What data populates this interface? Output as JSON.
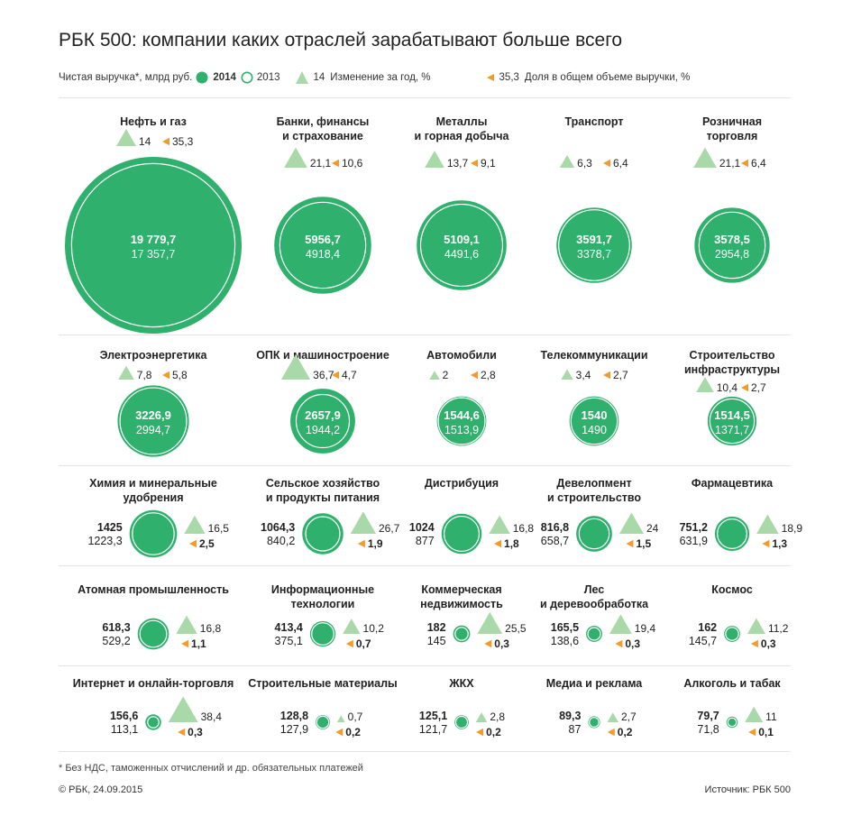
{
  "title": "РБК 500: компании каких отраслей зарабатывают больше всего",
  "legend": {
    "revenue_label": "Чистая выручка*, млрд руб.",
    "year_2014": "2014",
    "year_2013": "2013",
    "change_example": "14",
    "change_label": "Изменение за год, %",
    "share_example": "35,3",
    "share_label": "Доля в общем объеме выручки, %"
  },
  "colors": {
    "circle_fill": "#2fb06d",
    "circle_outline": "#2fb06d",
    "triangle": "#a9d8a9",
    "arrow": "#f29a2e",
    "separator": "#e4e4e4"
  },
  "chart_data": {
    "type": "bubble",
    "units": "млрд руб.",
    "series": [
      {
        "name": "2014"
      },
      {
        "name": "2013"
      }
    ],
    "industries": [
      {
        "name": "Нефть и газ",
        "rev2014": "19 779,7",
        "rev2013": "17 357,7",
        "change": "14",
        "share": "35,3"
      },
      {
        "name": "Банки, финансы\nи страхование",
        "rev2014": "5956,7",
        "rev2013": "4918,4",
        "change": "21,1",
        "share": "10,6"
      },
      {
        "name": "Металлы\nи горная добыча",
        "rev2014": "5109,1",
        "rev2013": "4491,6",
        "change": "13,7",
        "share": "9,1"
      },
      {
        "name": "Транспорт",
        "rev2014": "3591,7",
        "rev2013": "3378,7",
        "change": "6,3",
        "share": "6,4"
      },
      {
        "name": "Розничная\nторговля",
        "rev2014": "3578,5",
        "rev2013": "2954,8",
        "change": "21,1",
        "share": "6,4"
      },
      {
        "name": "Электроэнергетика",
        "rev2014": "3226,9",
        "rev2013": "2994,7",
        "change": "7,8",
        "share": "5,8"
      },
      {
        "name": "ОПК и машиностроение",
        "rev2014": "2657,9",
        "rev2013": "1944,2",
        "change": "36,7",
        "share": "4,7"
      },
      {
        "name": "Автомобили",
        "rev2014": "1544,6",
        "rev2013": "1513,9",
        "change": "2",
        "share": "2,8"
      },
      {
        "name": "Телекоммуникации",
        "rev2014": "1540",
        "rev2013": "1490",
        "change": "3,4",
        "share": "2,7"
      },
      {
        "name": "Строительство\nинфраструктуры",
        "rev2014": "1514,5",
        "rev2013": "1371,7",
        "change": "10,4",
        "share": "2,7"
      },
      {
        "name": "Химия и минеральные\nудобрения",
        "rev2014": "1425",
        "rev2013": "1223,3",
        "change": "16,5",
        "share": "2,5"
      },
      {
        "name": "Сельское хозяйство\nи продукты питания",
        "rev2014": "1064,3",
        "rev2013": "840,2",
        "change": "26,7",
        "share": "1,9"
      },
      {
        "name": "Дистрибуция",
        "rev2014": "1024",
        "rev2013": "877",
        "change": "16,8",
        "share": "1,8"
      },
      {
        "name": "Девелопмент\nи строительство",
        "rev2014": "816,8",
        "rev2013": "658,7",
        "change": "24",
        "share": "1,5"
      },
      {
        "name": "Фармацевтика",
        "rev2014": "751,2",
        "rev2013": "631,9",
        "change": "18,9",
        "share": "1,3"
      },
      {
        "name": "Атомная промышленность",
        "rev2014": "618,3",
        "rev2013": "529,2",
        "change": "16,8",
        "share": "1,1"
      },
      {
        "name": "Информационные\nтехнологии",
        "rev2014": "413,4",
        "rev2013": "375,1",
        "change": "10,2",
        "share": "0,7"
      },
      {
        "name": "Коммерческая\nнедвижимость",
        "rev2014": "182",
        "rev2013": "145",
        "change": "25,5",
        "share": "0,3"
      },
      {
        "name": "Лес\nи деревообработка",
        "rev2014": "165,5",
        "rev2013": "138,6",
        "change": "19,4",
        "share": "0,3"
      },
      {
        "name": "Космос",
        "rev2014": "162",
        "rev2013": "145,7",
        "change": "11,2",
        "share": "0,3"
      },
      {
        "name": "Интернет и онлайн-торговля",
        "rev2014": "156,6",
        "rev2013": "113,1",
        "change": "38,4",
        "share": "0,3"
      },
      {
        "name": "Строительные материалы",
        "rev2014": "128,8",
        "rev2013": "127,9",
        "change": "0,7",
        "share": "0,2"
      },
      {
        "name": "ЖКХ",
        "rev2014": "125,1",
        "rev2013": "121,7",
        "change": "2,8",
        "share": "0,2"
      },
      {
        "name": "Медиа и реклама",
        "rev2014": "89,3",
        "rev2013": "87",
        "change": "2,7",
        "share": "0,2"
      },
      {
        "name": "Алкоголь и табак",
        "rev2014": "79,7",
        "rev2013": "71,8",
        "change": "11",
        "share": "0,1"
      }
    ]
  },
  "footnote": "* Без НДС, таможенных отчислений и др. обязательных платежей",
  "copyright": "© РБК, 24.09.2015",
  "source": "Источник: РБК 500"
}
